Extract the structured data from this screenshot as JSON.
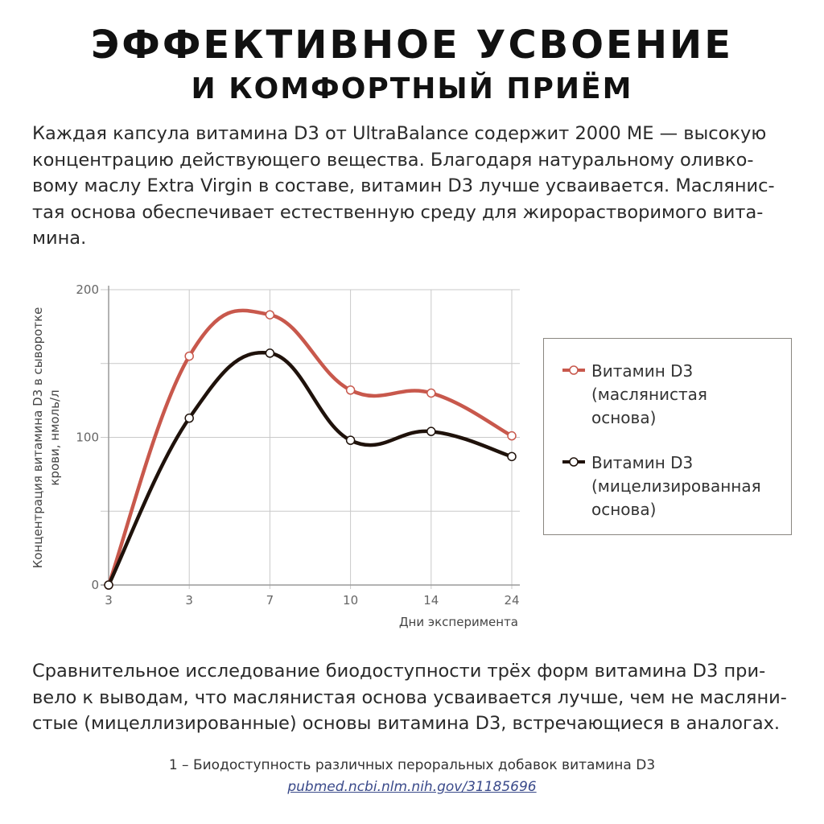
{
  "header": {
    "title_line1": "ЭФФЕКТИВНОЕ УСВОЕНИЕ",
    "title_line2": "И КОМФОРТНЫЙ ПРИЁМ"
  },
  "intro_lines": [
    "Каждая капсула витамина D3 от UltraBalance содержит 2000 МЕ — высокую",
    "концентрацию действующего вещества. Благодаря натуральному оливко-",
    "вому маслу Extra Virgin в составе, витамин D3 лучше усваивается. Маслянис-",
    "тая основа обеспечивает естественную среду для жирорастворимого вита-",
    "мина."
  ],
  "colors": {
    "series_oil": "#c8584c",
    "series_micelle": "#1f120b",
    "grid": "#c9c9c9",
    "axis_text": "#666666",
    "link": "#3a4a8a"
  },
  "chart_data": {
    "type": "line",
    "x": [
      "3",
      "3",
      "7",
      "10",
      "14",
      "24"
    ],
    "xlabel": "Дни эксперимента",
    "ylabel": "Концентрация витамина D3 в сыворотке крови, нмоль/л",
    "ylabel_lines": [
      "Концентрация витамина D3 в сыворотке",
      "крови, нмоль/л"
    ],
    "ylim": [
      0,
      200
    ],
    "yticks": [
      0,
      100,
      200
    ],
    "grid": true,
    "legend_position": "right",
    "series": [
      {
        "name": "Витамин D3 (масляниcтая основа)",
        "legend_text": "Витамин D3\n(масляниcтая\nоснова)",
        "values": [
          0,
          155,
          183,
          132,
          130,
          101
        ]
      },
      {
        "name": "Витамин D3 (мицелизированная основа)",
        "legend_text": "Витамин D3\n(мицелизированная\nоснова)",
        "values": [
          0,
          113,
          157,
          98,
          104,
          87
        ]
      }
    ]
  },
  "conclusion_lines": [
    "Сравнительное исследование биодоступности трёх форм витамина D3 при-",
    "вело к выводам, что масляниcтая основа усваивается лучше, чем не масляни-",
    "стые (мицеллизированные) основы витамина D3, встречающиеся в аналогах."
  ],
  "footnote": {
    "text": "1 – Биодоступность различных пероральных добавок витамина D3",
    "link": "pubmed.ncbi.nlm.nih.gov/31185696"
  }
}
